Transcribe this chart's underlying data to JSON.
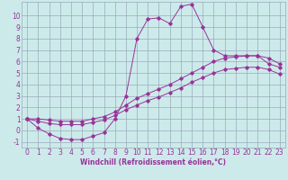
{
  "xlabel": "Windchill (Refroidissement éolien,°C)",
  "bg_color": "#cceaea",
  "line_color": "#993399",
  "grid_color": "#99aabb",
  "x_hours": [
    0,
    1,
    2,
    3,
    4,
    5,
    6,
    7,
    8,
    9,
    10,
    11,
    12,
    13,
    14,
    15,
    16,
    17,
    18,
    19,
    20,
    21,
    22,
    23
  ],
  "temp_main": [
    1.0,
    0.2,
    -0.3,
    -0.7,
    -0.8,
    -0.8,
    -0.5,
    -0.2,
    1.0,
    3.0,
    8.0,
    9.7,
    9.8,
    9.3,
    10.8,
    11.0,
    9.0,
    7.0,
    6.5,
    6.5,
    6.5,
    6.5,
    5.8,
    5.5
  ],
  "temp_upper": [
    1.0,
    1.0,
    0.9,
    0.8,
    0.8,
    0.8,
    1.0,
    1.2,
    1.6,
    2.2,
    2.8,
    3.2,
    3.6,
    4.0,
    4.5,
    5.0,
    5.5,
    6.0,
    6.3,
    6.4,
    6.5,
    6.5,
    6.3,
    5.8
  ],
  "temp_lower": [
    1.0,
    0.8,
    0.6,
    0.5,
    0.5,
    0.5,
    0.7,
    0.9,
    1.3,
    1.8,
    2.2,
    2.6,
    2.9,
    3.3,
    3.7,
    4.2,
    4.6,
    5.0,
    5.3,
    5.4,
    5.5,
    5.5,
    5.3,
    4.9
  ],
  "ylim": [
    -1.5,
    11.2
  ],
  "xlim": [
    -0.5,
    23.5
  ],
  "yticks": [
    -1,
    0,
    1,
    2,
    3,
    4,
    5,
    6,
    7,
    8,
    9,
    10
  ],
  "xticks": [
    0,
    1,
    2,
    3,
    4,
    5,
    6,
    7,
    8,
    9,
    10,
    11,
    12,
    13,
    14,
    15,
    16,
    17,
    18,
    19,
    20,
    21,
    22,
    23
  ],
  "font_size": 5.5,
  "label_fontsize": 5.5,
  "marker": "D",
  "markersize": 1.8,
  "linewidth": 0.7
}
